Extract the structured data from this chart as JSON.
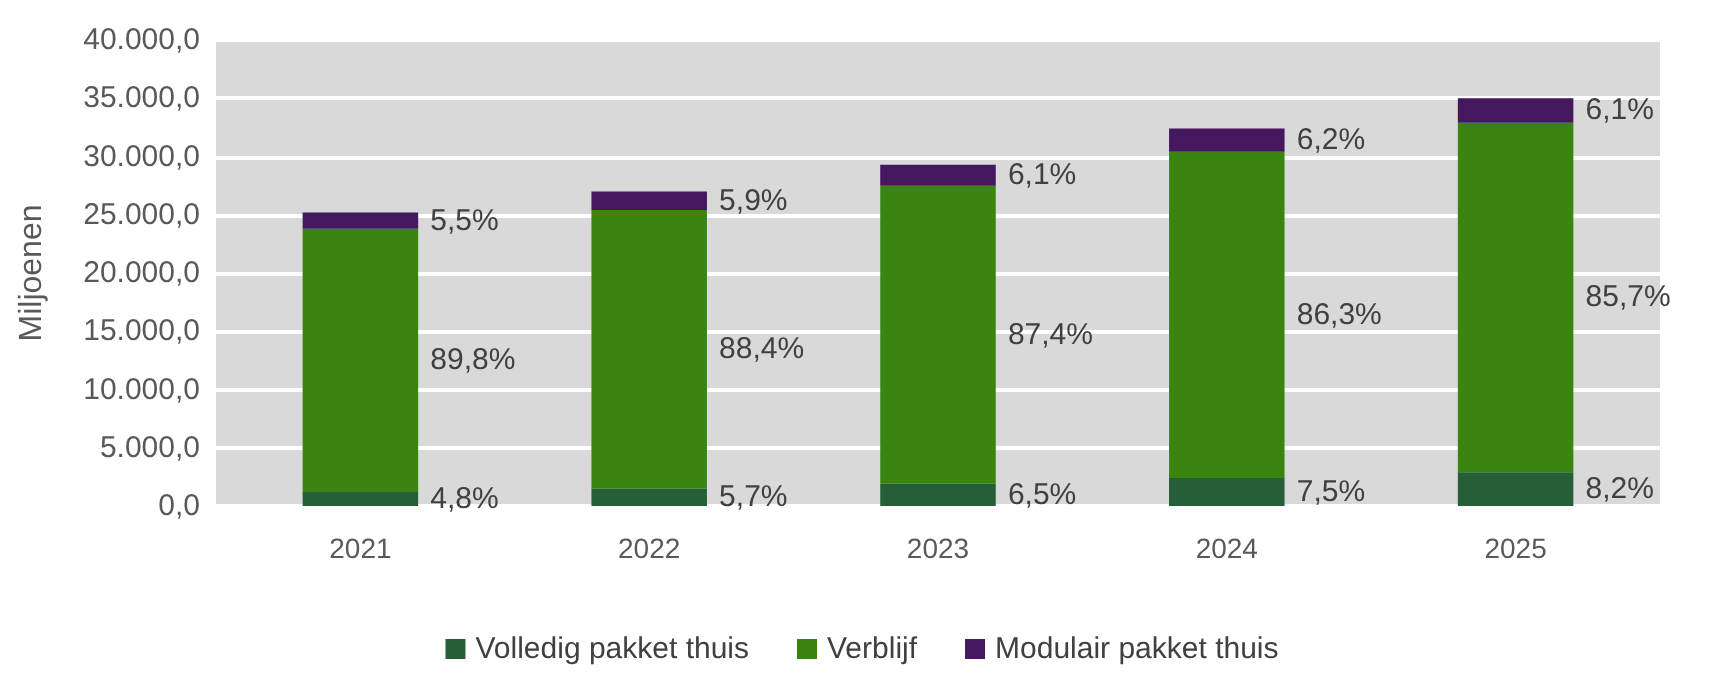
{
  "chart_data": {
    "type": "bar",
    "stacked": true,
    "ylabel": "Miljoenen",
    "categories": [
      "2021",
      "2022",
      "2023",
      "2024",
      "2025"
    ],
    "series": [
      {
        "name": "Volledig pakket thuis",
        "color": "#255e37",
        "values": [
          1200,
          1500,
          1900,
          2400,
          2900
        ]
      },
      {
        "name": "Verblijf",
        "color": "#3a8510",
        "values": [
          22600,
          23900,
          25600,
          28000,
          30000
        ]
      },
      {
        "name": "Modulair pakket thuis",
        "color": "#44175e",
        "values": [
          1400,
          1600,
          1800,
          2000,
          2100
        ]
      }
    ],
    "annotations": [
      "4,8%",
      "5,7%",
      "6,5%",
      "7,5%",
      "8,2%",
      "89,8%",
      "88,4%",
      "87,4%",
      "86,3%",
      "85,7%",
      "5,5%",
      "5,9%",
      "6,1%",
      "6,2%",
      "6,1%"
    ],
    "ylim": [
      0,
      40000
    ],
    "yticks": [
      {
        "value": 0,
        "label": "0,0"
      },
      {
        "value": 5000,
        "label": "5.000,0"
      },
      {
        "value": 10000,
        "label": "10.000,0"
      },
      {
        "value": 15000,
        "label": "15.000,0"
      },
      {
        "value": 20000,
        "label": "20.000,0"
      },
      {
        "value": 25000,
        "label": "25.000,0"
      },
      {
        "value": 30000,
        "label": "30.000,0"
      },
      {
        "value": 35000,
        "label": "35.000,0"
      },
      {
        "value": 40000,
        "label": "40.000,0"
      }
    ],
    "grid": "y",
    "legend": "bottom"
  }
}
